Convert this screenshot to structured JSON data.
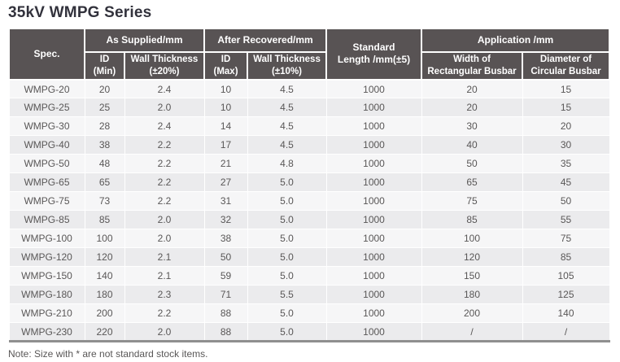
{
  "page": {
    "title": "35kV WMPG Series",
    "note": "Note: Size with * are not standard stock items."
  },
  "colors": {
    "header_bg": "#585354",
    "row_light": "#f6f6f7",
    "row_dark": "#ebebed",
    "body_text": "#595757",
    "title_text": "#32323c",
    "table_bottom_border": "#8f8f8f"
  },
  "table": {
    "column_keys": [
      "spec",
      "id_min",
      "wt20",
      "id_max",
      "wt10",
      "length",
      "width",
      "diameter"
    ],
    "header": {
      "spec": "Spec.",
      "as_supplied": "As Supplied/mm",
      "after_recovered": "After Recovered/mm",
      "standard_length": "Standard\nLength /mm(±5)",
      "application": "Application /mm",
      "id_min": "ID\n(Min)",
      "wt20": "Wall Thickness\n(±20%)",
      "id_max": "ID\n(Max)",
      "wt10": "Wall Thickness\n(±10%)",
      "width": "Width of\nRectangular Busbar",
      "diameter": "Diameter of\nCircular Busbar"
    },
    "rows": [
      {
        "spec": "WMPG-20",
        "id_min": "20",
        "wt20": "2.4",
        "id_max": "10",
        "wt10": "4.5",
        "length": "1000",
        "width": "20",
        "diameter": "15"
      },
      {
        "spec": "WMPG-25",
        "id_min": "25",
        "wt20": "2.0",
        "id_max": "10",
        "wt10": "4.5",
        "length": "1000",
        "width": "20",
        "diameter": "15"
      },
      {
        "spec": "WMPG-30",
        "id_min": "28",
        "wt20": "2.4",
        "id_max": "14",
        "wt10": "4.5",
        "length": "1000",
        "width": "30",
        "diameter": "20"
      },
      {
        "spec": "WMPG-40",
        "id_min": "38",
        "wt20": "2.2",
        "id_max": "17",
        "wt10": "4.5",
        "length": "1000",
        "width": "40",
        "diameter": "30"
      },
      {
        "spec": "WMPG-50",
        "id_min": "48",
        "wt20": "2.2",
        "id_max": "21",
        "wt10": "4.8",
        "length": "1000",
        "width": "50",
        "diameter": "35"
      },
      {
        "spec": "WMPG-65",
        "id_min": "65",
        "wt20": "2.2",
        "id_max": "27",
        "wt10": "5.0",
        "length": "1000",
        "width": "65",
        "diameter": "45"
      },
      {
        "spec": "WMPG-75",
        "id_min": "73",
        "wt20": "2.2",
        "id_max": "31",
        "wt10": "5.0",
        "length": "1000",
        "width": "75",
        "diameter": "50"
      },
      {
        "spec": "WMPG-85",
        "id_min": "85",
        "wt20": "2.0",
        "id_max": "32",
        "wt10": "5.0",
        "length": "1000",
        "width": "85",
        "diameter": "55"
      },
      {
        "spec": "WMPG-100",
        "id_min": "100",
        "wt20": "2.0",
        "id_max": "38",
        "wt10": "5.0",
        "length": "1000",
        "width": "100",
        "diameter": "75"
      },
      {
        "spec": "WMPG-120",
        "id_min": "120",
        "wt20": "2.1",
        "id_max": "50",
        "wt10": "5.0",
        "length": "1000",
        "width": "120",
        "diameter": "85"
      },
      {
        "spec": "WMPG-150",
        "id_min": "140",
        "wt20": "2.1",
        "id_max": "59",
        "wt10": "5.0",
        "length": "1000",
        "width": "150",
        "diameter": "105"
      },
      {
        "spec": "WMPG-180",
        "id_min": "180",
        "wt20": "2.3",
        "id_max": "71",
        "wt10": "5.5",
        "length": "1000",
        "width": "180",
        "diameter": "125"
      },
      {
        "spec": "WMPG-210",
        "id_min": "200",
        "wt20": "2.2",
        "id_max": "88",
        "wt10": "5.0",
        "length": "1000",
        "width": "200",
        "diameter": "140"
      },
      {
        "spec": "WMPG-230",
        "id_min": "220",
        "wt20": "2.0",
        "id_max": "88",
        "wt10": "5.0",
        "length": "1000",
        "width": "/",
        "diameter": "/"
      }
    ]
  }
}
